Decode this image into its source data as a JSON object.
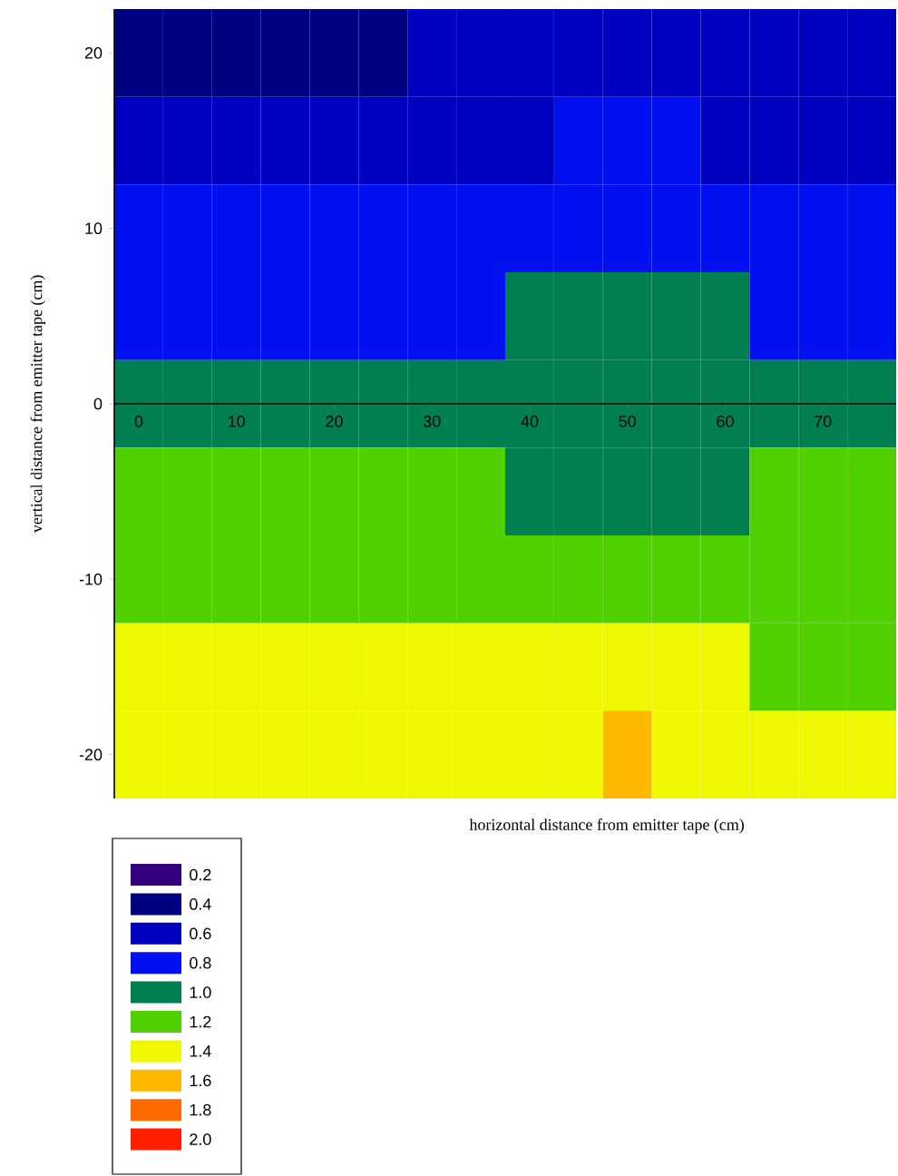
{
  "chart_data": {
    "type": "heatmap",
    "xlabel": "horizontal distance from emitter tape (cm)",
    "ylabel": "vertical distance from emitter tape (cm)",
    "categories": [
      "0",
      null,
      "10",
      null,
      "20",
      null,
      "30",
      null,
      "40",
      null,
      "50",
      null,
      "60",
      null,
      "70",
      null
    ],
    "y_categories": [
      "20",
      null,
      "10",
      null,
      "0",
      null,
      "-10",
      null,
      "-20"
    ],
    "cells": [
      [
        0.4,
        0.4,
        0.4,
        0.4,
        0.4,
        0.4,
        0.6,
        0.6,
        0.6,
        0.6,
        0.6,
        0.6,
        0.6,
        0.6,
        0.6,
        0.6
      ],
      [
        0.6,
        0.6,
        0.6,
        0.6,
        0.6,
        0.6,
        0.6,
        0.6,
        0.6,
        0.8,
        0.8,
        0.8,
        0.6,
        0.6,
        0.6,
        0.6
      ],
      [
        0.8,
        0.8,
        0.8,
        0.8,
        0.8,
        0.8,
        0.8,
        0.8,
        0.8,
        0.8,
        0.8,
        0.8,
        0.8,
        0.8,
        0.8,
        0.8
      ],
      [
        0.8,
        0.8,
        0.8,
        0.8,
        0.8,
        0.8,
        0.8,
        0.8,
        1.0,
        1.0,
        1.0,
        1.0,
        1.0,
        0.8,
        0.8,
        0.8
      ],
      [
        1.0,
        1.0,
        1.0,
        1.0,
        1.0,
        1.0,
        1.0,
        1.0,
        1.0,
        1.0,
        1.0,
        1.0,
        1.0,
        1.0,
        1.0,
        1.0
      ],
      [
        1.2,
        1.2,
        1.2,
        1.2,
        1.2,
        1.2,
        1.2,
        1.2,
        1.0,
        1.0,
        1.0,
        1.0,
        1.0,
        1.2,
        1.2,
        1.2
      ],
      [
        1.2,
        1.2,
        1.2,
        1.2,
        1.2,
        1.2,
        1.2,
        1.2,
        1.2,
        1.2,
        1.2,
        1.2,
        1.2,
        1.2,
        1.2,
        1.2
      ],
      [
        1.4,
        1.4,
        1.4,
        1.4,
        1.4,
        1.4,
        1.4,
        1.4,
        1.4,
        1.4,
        1.4,
        1.4,
        1.4,
        1.2,
        1.2,
        1.2
      ],
      [
        1.4,
        1.4,
        1.4,
        1.4,
        1.4,
        1.4,
        1.4,
        1.4,
        1.4,
        1.4,
        1.6,
        1.4,
        1.4,
        1.4,
        1.4,
        1.4
      ]
    ],
    "cticks": [
      0.2,
      0.4,
      0.6,
      0.8,
      {
        "value": 1.0,
        "label": "1.0"
      },
      1.2,
      1.4,
      1.6,
      1.8,
      {
        "value": 2.0,
        "label": "2.0"
      }
    ],
    "colors": [
      "#330080",
      "#000080",
      "#0000c0",
      "#0010f0",
      "#008050",
      "#50d000",
      "#f0f800",
      "#ffb800",
      "#ff6a00",
      "#ff2000"
    ]
  }
}
